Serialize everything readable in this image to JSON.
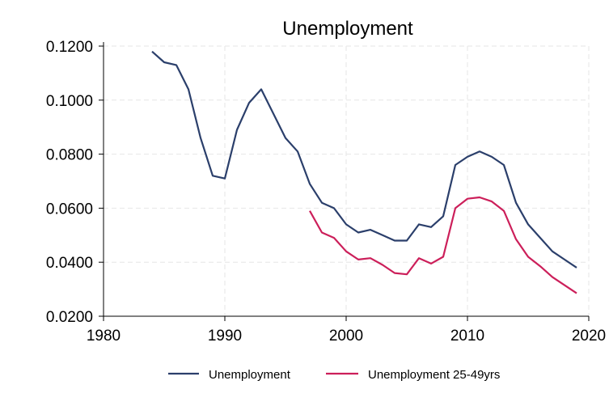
{
  "chart_data": {
    "type": "line",
    "title": "Unemployment",
    "xlabel": "",
    "ylabel": "",
    "xlim": [
      1980,
      2020
    ],
    "ylim": [
      0.02,
      0.12
    ],
    "x_ticks": [
      "1980",
      "1990",
      "2000",
      "2010",
      "2020"
    ],
    "y_ticks": [
      "0.0200",
      "0.0400",
      "0.0600",
      "0.0800",
      "0.1000",
      "0.1200"
    ],
    "grid": true,
    "legend_position": "bottom",
    "series": [
      {
        "name": "Unemployment",
        "color": "#2b3f6b",
        "x": [
          1984,
          1985,
          1986,
          1987,
          1988,
          1989,
          1990,
          1991,
          1992,
          1993,
          1994,
          1995,
          1996,
          1997,
          1998,
          1999,
          2000,
          2001,
          2002,
          2003,
          2004,
          2005,
          2006,
          2007,
          2008,
          2009,
          2010,
          2011,
          2012,
          2013,
          2014,
          2015,
          2016,
          2017,
          2018,
          2019
        ],
        "y": [
          0.118,
          0.114,
          0.113,
          0.104,
          0.086,
          0.072,
          0.071,
          0.089,
          0.099,
          0.104,
          0.095,
          0.086,
          0.081,
          0.069,
          0.062,
          0.06,
          0.054,
          0.051,
          0.052,
          0.05,
          0.048,
          0.048,
          0.054,
          0.053,
          0.057,
          0.076,
          0.079,
          0.081,
          0.079,
          0.076,
          0.062,
          0.054,
          0.049,
          0.044,
          0.041,
          0.038
        ]
      },
      {
        "name": "Unemployment 25-49yrs",
        "color": "#cc1f5a",
        "x": [
          1997,
          1998,
          1999,
          2000,
          2001,
          2002,
          2003,
          2004,
          2005,
          2006,
          2007,
          2008,
          2009,
          2010,
          2011,
          2012,
          2013,
          2014,
          2015,
          2016,
          2017,
          2018,
          2019
        ],
        "y": [
          0.059,
          0.051,
          0.049,
          0.044,
          0.041,
          0.0415,
          0.039,
          0.036,
          0.0355,
          0.0415,
          0.0395,
          0.042,
          0.06,
          0.0635,
          0.064,
          0.0625,
          0.059,
          0.0485,
          0.042,
          0.0385,
          0.0345,
          0.0315,
          0.0285
        ]
      }
    ]
  }
}
